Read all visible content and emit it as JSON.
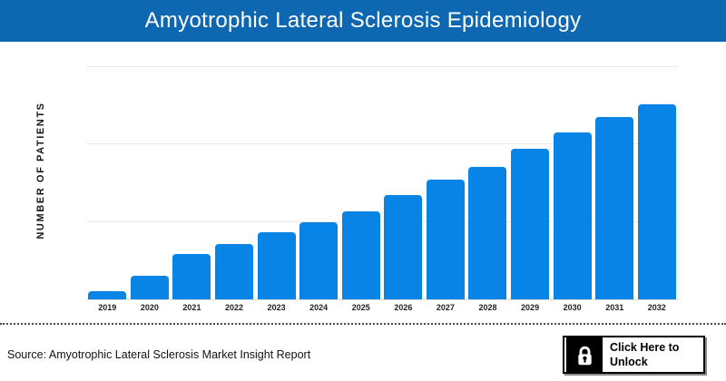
{
  "header": {
    "title": "Amyotrophic Lateral Sclerosis Epidemiology",
    "bg_color": "#0e67b1",
    "text_color": "#ffffff"
  },
  "chart_data": {
    "type": "bar",
    "title": "Amyotrophic Lateral Sclerosis Epidemiology",
    "ylabel": "NUMBER OF PATIENTS",
    "xlabel": "",
    "categories": [
      "2019",
      "2020",
      "2021",
      "2022",
      "2023",
      "2024",
      "2025",
      "2026",
      "2027",
      "2028",
      "2029",
      "2030",
      "2031",
      "2032"
    ],
    "values": [
      0.11,
      0.31,
      0.59,
      0.71,
      0.87,
      0.99,
      1.14,
      1.35,
      1.55,
      1.71,
      1.94,
      2.15,
      2.35,
      2.52
    ],
    "value_scale": "relative units; y-axis has no numeric tick labels, one gridline interval = 1 unit",
    "ylim": [
      0,
      3.1
    ],
    "gridlines": [
      1,
      2,
      3
    ],
    "grid_on": true,
    "legend": false,
    "bar_color": "#0884e6",
    "gridline_color": "#e9e9e9"
  },
  "footer": {
    "source_text": "Source: Amyotrophic Lateral Sclerosis Market Insight Report",
    "unlock_button": {
      "label": "Click Here to Unlock",
      "icon": "lock-icon"
    }
  }
}
